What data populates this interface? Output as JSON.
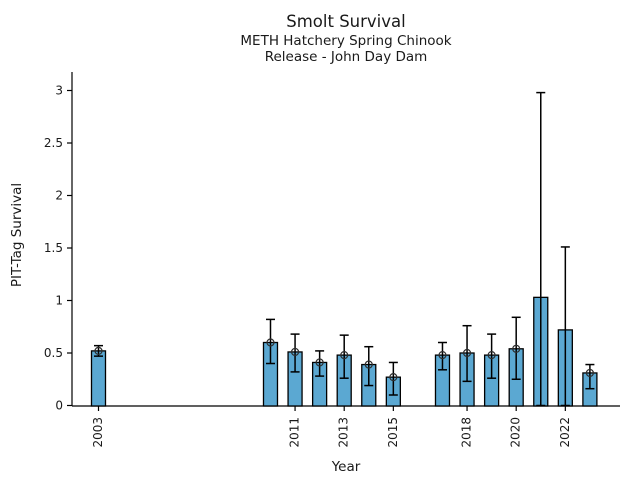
{
  "figure": {
    "title": "Smolt Survival",
    "subtitle1": "METH Hatchery Spring Chinook",
    "subtitle2": "Release - John Day Dam"
  },
  "chart_data": {
    "type": "bar",
    "title": "Smolt Survival",
    "subtitle": [
      "METH Hatchery Spring Chinook",
      "Release - John Day Dam"
    ],
    "xlabel": "Year",
    "ylabel": "PIT-Tag Survival",
    "ylim": [
      0,
      3.18
    ],
    "xlim_years": [
      2001.9,
      2024.3
    ],
    "grid": false,
    "legend": "none",
    "colors": {
      "bar_fill": "#5BA8D2",
      "bar_edge": "#000000",
      "error_bar": "#000000",
      "marker_stroke": "#2e2e2e",
      "axis": "#000000",
      "text": "#1a1a1a",
      "background": "#ffffff"
    },
    "marker_style": "open-circle",
    "yticks": [
      {
        "v": 0,
        "label": "0"
      },
      {
        "v": 0.5,
        "label": "0.5"
      },
      {
        "v": 1,
        "label": "1"
      },
      {
        "v": 1.5,
        "label": "1.5"
      },
      {
        "v": 2,
        "label": "2"
      },
      {
        "v": 2.5,
        "label": "2.5"
      },
      {
        "v": 3,
        "label": "3"
      }
    ],
    "xticks": [
      {
        "year": 2003,
        "label": "2003"
      },
      {
        "year": 2011,
        "label": "2011"
      },
      {
        "year": 2013,
        "label": "2013"
      },
      {
        "year": 2015,
        "label": "2015"
      },
      {
        "year": 2018,
        "label": "2018"
      },
      {
        "year": 2020,
        "label": "2020"
      },
      {
        "year": 2022,
        "label": "2022"
      }
    ],
    "points": [
      {
        "year": 2003,
        "value": 0.52,
        "err_lo": 0.47,
        "err_hi": 0.57,
        "marker": true
      },
      {
        "year": 2010,
        "value": 0.6,
        "err_lo": 0.4,
        "err_hi": 0.82,
        "marker": true
      },
      {
        "year": 2011,
        "value": 0.51,
        "err_lo": 0.32,
        "err_hi": 0.68,
        "marker": true
      },
      {
        "year": 2012,
        "value": 0.41,
        "err_lo": 0.28,
        "err_hi": 0.52,
        "marker": true
      },
      {
        "year": 2013,
        "value": 0.48,
        "err_lo": 0.26,
        "err_hi": 0.67,
        "marker": true
      },
      {
        "year": 2014,
        "value": 0.39,
        "err_lo": 0.19,
        "err_hi": 0.56,
        "marker": true
      },
      {
        "year": 2015,
        "value": 0.27,
        "err_lo": 0.1,
        "err_hi": 0.41,
        "marker": true
      },
      {
        "year": 2017,
        "value": 0.48,
        "err_lo": 0.34,
        "err_hi": 0.6,
        "marker": true
      },
      {
        "year": 2018,
        "value": 0.5,
        "err_lo": 0.23,
        "err_hi": 0.76,
        "marker": true
      },
      {
        "year": 2019,
        "value": 0.48,
        "err_lo": 0.26,
        "err_hi": 0.68,
        "marker": true
      },
      {
        "year": 2020,
        "value": 0.54,
        "err_lo": 0.25,
        "err_hi": 0.84,
        "marker": true
      },
      {
        "year": 2021,
        "value": 1.03,
        "err_lo": 0.0,
        "err_hi": 2.98,
        "marker": false
      },
      {
        "year": 2022,
        "value": 0.72,
        "err_lo": 0.0,
        "err_hi": 1.51,
        "marker": false
      },
      {
        "year": 2023,
        "value": 0.31,
        "err_lo": 0.16,
        "err_hi": 0.39,
        "marker": true
      }
    ]
  }
}
